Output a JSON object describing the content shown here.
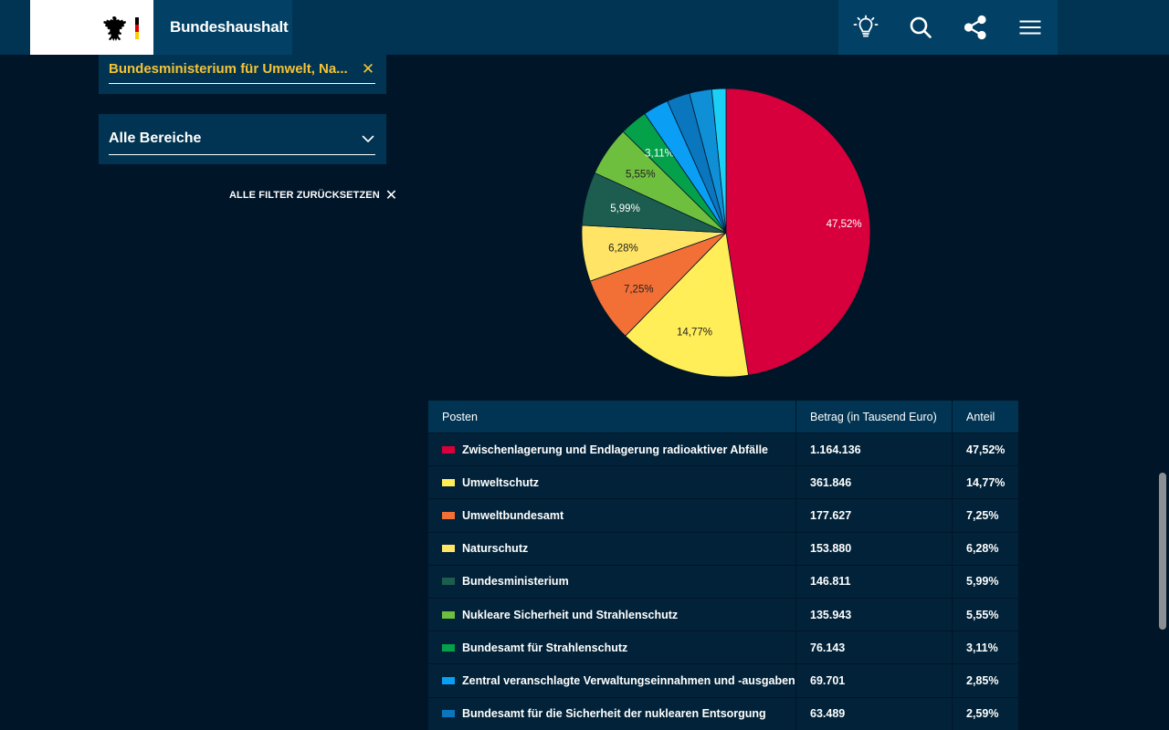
{
  "header": {
    "site_title": "Bundeshaushalt",
    "tools": [
      {
        "name": "lightbulb-icon"
      },
      {
        "name": "search-icon"
      },
      {
        "name": "share-icon"
      },
      {
        "name": "menu-icon"
      }
    ]
  },
  "filters": {
    "ministry": "Bundesministerium für Umwelt, Na...",
    "area": "Alle Bereiche",
    "reset_label": "ALLE FILTER ZURÜCKSETZEN"
  },
  "colors": {
    "background": "#001628",
    "header": "#013452",
    "accent": "#f5c335"
  },
  "table": {
    "headers": [
      "Posten",
      "Betrag (in Tausend Euro)",
      "Anteil"
    ],
    "rows": [
      {
        "label": "Zwischenlagerung und Endlagerung radioaktiver Abfälle",
        "amount": "1.164.136",
        "share": "47,52%",
        "color": "#d8003c"
      },
      {
        "label": "Umweltschutz",
        "amount": "361.846",
        "share": "14,77%",
        "color": "#ffee58"
      },
      {
        "label": "Umweltbundesamt",
        "amount": "177.627",
        "share": "7,25%",
        "color": "#f26f36"
      },
      {
        "label": "Naturschutz",
        "amount": "153.880",
        "share": "6,28%",
        "color": "#ffe466"
      },
      {
        "label": "Bundesministerium",
        "amount": "146.811",
        "share": "5,99%",
        "color": "#1c5d4f"
      },
      {
        "label": "Nukleare Sicherheit und Strahlenschutz",
        "amount": "135.943",
        "share": "5,55%",
        "color": "#6fbf3f"
      },
      {
        "label": "Bundesamt für Strahlenschutz",
        "amount": "76.143",
        "share": "3,11%",
        "color": "#05a04a"
      },
      {
        "label": "Zentral veranschlagte Verwaltungseinnahmen und -ausgaben",
        "amount": "69.701",
        "share": "2,85%",
        "color": "#0b9ef5"
      },
      {
        "label": "Bundesamt für die Sicherheit der nuklearen Entsorgung",
        "amount": "63.489",
        "share": "2,59%",
        "color": "#0a76bd"
      }
    ]
  },
  "chart_data": {
    "type": "pie",
    "slices": [
      {
        "value": 47.52,
        "label": "47,52%",
        "color": "#d8003c"
      },
      {
        "value": 14.77,
        "label": "14,77%",
        "color": "#ffee58"
      },
      {
        "value": 7.25,
        "label": "7,25%",
        "color": "#f26f36"
      },
      {
        "value": 6.28,
        "label": "6,28%",
        "color": "#ffe466"
      },
      {
        "value": 5.99,
        "label": "5,99%",
        "color": "#1c5d4f"
      },
      {
        "value": 5.55,
        "label": "5,55%",
        "color": "#6fbf3f"
      },
      {
        "value": 3.11,
        "label": "3,11%",
        "color": "#05a04a"
      },
      {
        "value": 2.85,
        "label": "",
        "color": "#0b9ef5"
      },
      {
        "value": 2.59,
        "label": "",
        "color": "#0a76bd"
      },
      {
        "value": 2.5,
        "label": "",
        "color": "#0f8fd6"
      },
      {
        "value": 1.59,
        "label": "",
        "color": "#1ad0f5"
      }
    ]
  }
}
